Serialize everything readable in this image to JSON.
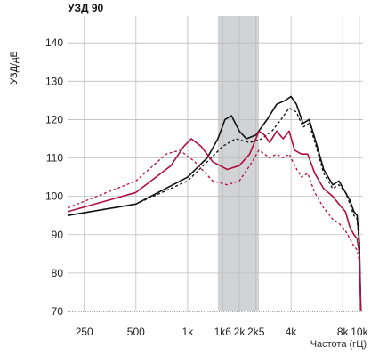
{
  "chart_data": {
    "type": "line",
    "title": "УЗД 90",
    "ylabel": "УЗД/дБ",
    "xlabel": "Частота (гЦ)",
    "x_scale": "log",
    "xlim": [
      200,
      10500
    ],
    "ylim": [
      70,
      147
    ],
    "y_ticks": [
      70,
      80,
      90,
      100,
      110,
      120,
      130,
      140
    ],
    "x_ticks": [
      {
        "value": 250,
        "label": "250"
      },
      {
        "value": 500,
        "label": "500"
      },
      {
        "value": 1000,
        "label": "1k"
      },
      {
        "value": 1600,
        "label": "1k6"
      },
      {
        "value": 2000,
        "label": "2k"
      },
      {
        "value": 2500,
        "label": "2k5"
      },
      {
        "value": 4000,
        "label": "4k"
      },
      {
        "value": 8000,
        "label": "8k"
      },
      {
        "value": 10000,
        "label": "10k"
      }
    ],
    "shaded_band": [
      1500,
      2600
    ],
    "grid": true,
    "series": [
      {
        "color": "#111111",
        "dash": "solid",
        "x": [
          200,
          500,
          1000,
          1300,
          1500,
          1650,
          1800,
          2000,
          2200,
          2500,
          2900,
          3300,
          3700,
          4000,
          4300,
          4700,
          5100,
          5600,
          6200,
          7000,
          7600,
          8300,
          8800,
          9300,
          9700,
          10000,
          10200
        ],
        "y": [
          95,
          98,
          105,
          110,
          115,
          120,
          121,
          117,
          115,
          116,
          120,
          124,
          125,
          126,
          124,
          119,
          120,
          114,
          107,
          103,
          104,
          101,
          99,
          96,
          95,
          88,
          70
        ]
      },
      {
        "color": "#111111",
        "dash": "dashed",
        "x": [
          200,
          500,
          1000,
          1300,
          1600,
          1900,
          2300,
          2700,
          3100,
          3500,
          3900,
          4300,
          4700,
          5100,
          5600,
          6200,
          7000,
          7600,
          8300,
          8800,
          9300,
          9700,
          10000,
          10200
        ],
        "y": [
          95,
          98,
          104,
          109,
          113,
          115,
          114,
          115,
          117,
          120,
          123,
          122,
          118,
          119,
          113,
          106,
          102,
          103,
          101,
          98,
          95,
          94,
          87,
          70
        ]
      },
      {
        "color": "#b0103f",
        "dash": "solid",
        "x": [
          200,
          500,
          800,
          950,
          1050,
          1200,
          1400,
          1700,
          2000,
          2300,
          2600,
          2800,
          3000,
          3300,
          3600,
          3900,
          4200,
          4600,
          5000,
          5500,
          6200,
          7000,
          7600,
          8300,
          8800,
          9300,
          9700,
          10000,
          10200
        ],
        "y": [
          96,
          101,
          108,
          113,
          115,
          113,
          109,
          107,
          108,
          111,
          117,
          116,
          114,
          117,
          115,
          117,
          112,
          111,
          111,
          106,
          102,
          100,
          98,
          96,
          92,
          90,
          89,
          85,
          70
        ]
      },
      {
        "color": "#b0103f",
        "dash": "dashed",
        "x": [
          200,
          500,
          750,
          900,
          1100,
          1400,
          1700,
          2000,
          2300,
          2600,
          2800,
          3000,
          3300,
          3600,
          3900,
          4200,
          4600,
          5000,
          5500,
          6200,
          7000,
          7600,
          8300,
          8800,
          9300,
          9700,
          10000,
          10200
        ],
        "y": [
          97,
          104,
          111,
          112,
          109,
          104,
          103,
          104,
          108,
          112,
          111,
          110,
          111,
          110,
          111,
          108,
          105,
          106,
          101,
          97,
          94,
          93,
          91,
          89,
          87,
          86,
          83,
          70
        ]
      }
    ]
  }
}
